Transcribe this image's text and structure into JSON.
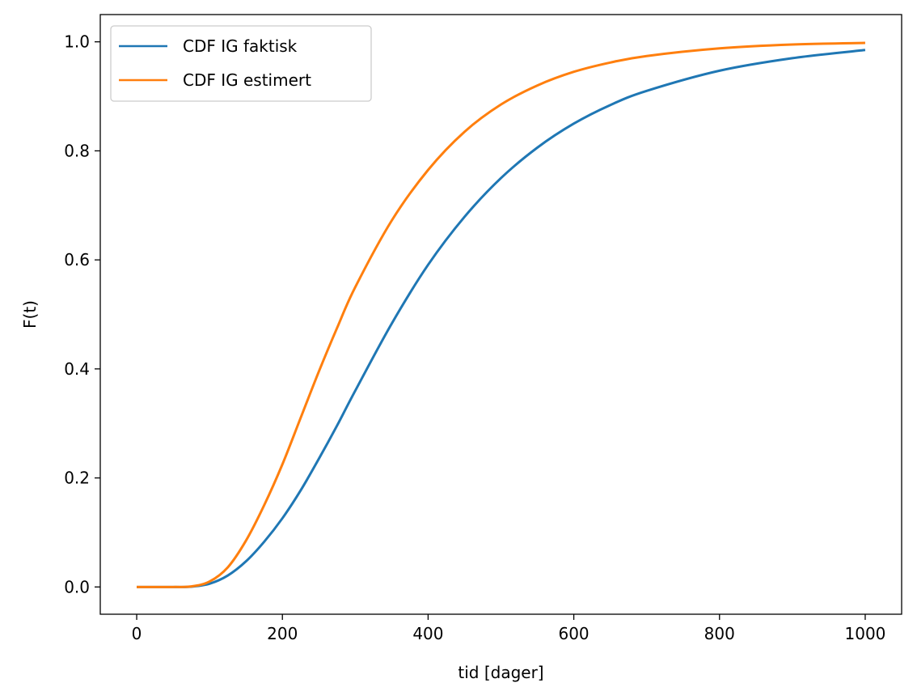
{
  "chart_data": {
    "type": "line",
    "title": "",
    "xlabel": "tid [dager]",
    "ylabel": "F(t)",
    "xlim": [
      -50,
      1050
    ],
    "ylim": [
      -0.05,
      1.05
    ],
    "xticks": [
      0,
      200,
      400,
      600,
      800,
      1000
    ],
    "xtick_labels": [
      "0",
      "200",
      "400",
      "600",
      "800",
      "1000"
    ],
    "yticks": [
      0.0,
      0.2,
      0.4,
      0.6,
      0.8,
      1.0
    ],
    "ytick_labels": [
      "0.0",
      "0.2",
      "0.4",
      "0.6",
      "0.8",
      "1.0"
    ],
    "grid": false,
    "legend_position": "top-left",
    "x": [
      0,
      50,
      75,
      100,
      125,
      150,
      175,
      200,
      225,
      250,
      275,
      300,
      350,
      400,
      450,
      500,
      550,
      600,
      650,
      700,
      800,
      900,
      1000
    ],
    "series": [
      {
        "name": "CDF IG faktisk",
        "color": "#1f77b4",
        "values": [
          0.0,
          0.0,
          0.0005,
          0.006,
          0.021,
          0.047,
          0.083,
          0.126,
          0.177,
          0.235,
          0.296,
          0.36,
          0.483,
          0.591,
          0.679,
          0.75,
          0.806,
          0.85,
          0.884,
          0.91,
          0.947,
          0.97,
          0.985
        ]
      },
      {
        "name": "CDF IG estimert",
        "color": "#ff7f0e",
        "values": [
          0.0,
          0.0,
          0.001,
          0.01,
          0.036,
          0.085,
          0.15,
          0.225,
          0.31,
          0.395,
          0.475,
          0.55,
          0.672,
          0.765,
          0.835,
          0.885,
          0.92,
          0.945,
          0.962,
          0.974,
          0.988,
          0.995,
          0.998
        ]
      }
    ]
  }
}
